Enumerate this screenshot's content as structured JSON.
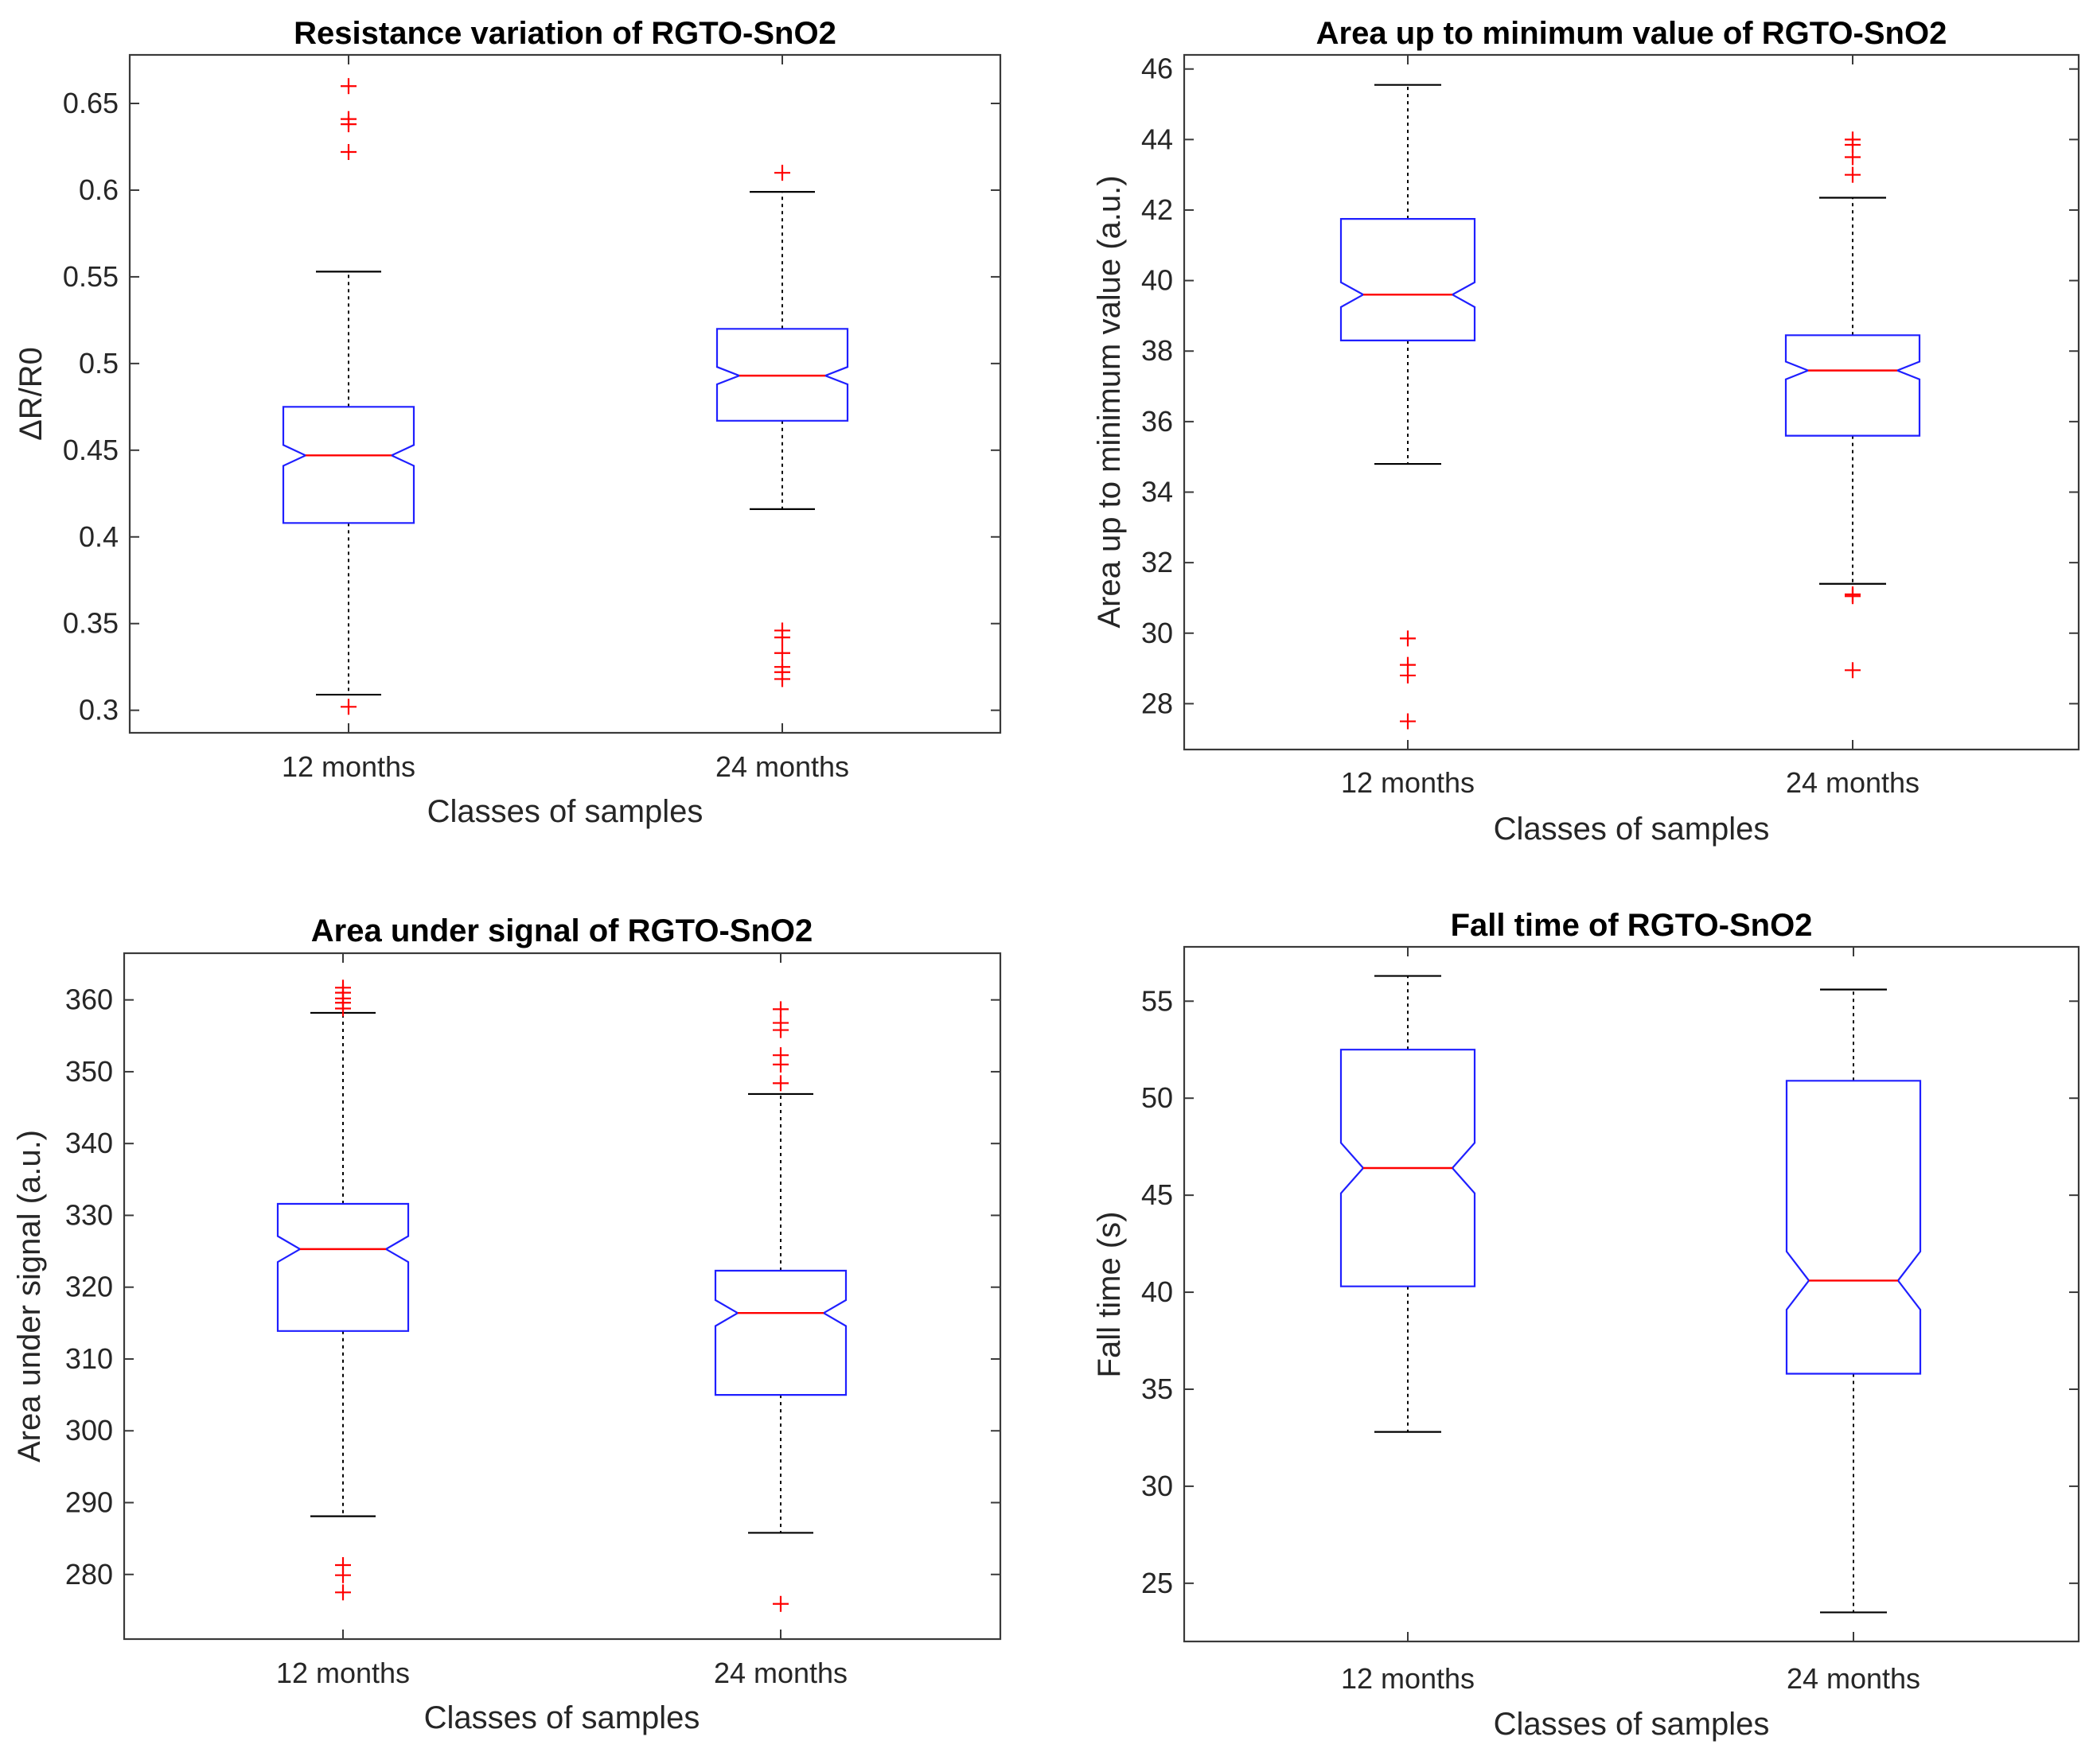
{
  "chart_data": [
    {
      "type": "boxplot",
      "title": "Resistance variation of RGTO-SnO2",
      "xlabel": "Classes of samples",
      "ylabel": "ΔR/R0",
      "categories": [
        "12 months",
        "24 months"
      ],
      "ylim": [
        0.287,
        0.678
      ],
      "yticks": [
        0.3,
        0.35,
        0.4,
        0.45,
        0.5,
        0.55,
        0.6,
        0.65
      ],
      "ytick_labels": [
        "0.3",
        "0.35",
        "0.4",
        "0.45",
        "0.5",
        "0.55",
        "0.6",
        "0.65"
      ],
      "boxes": [
        {
          "category": "12 months",
          "whisker_low": 0.309,
          "q1": 0.408,
          "median": 0.447,
          "q3": 0.475,
          "whisker_high": 0.553,
          "notch_low": 0.441,
          "notch_high": 0.453,
          "outliers": [
            0.302,
            0.622,
            0.638,
            0.641,
            0.66
          ]
        },
        {
          "category": "24 months",
          "whisker_low": 0.416,
          "q1": 0.467,
          "median": 0.493,
          "q3": 0.52,
          "whisker_high": 0.599,
          "notch_low": 0.488,
          "notch_high": 0.498,
          "outliers": [
            0.318,
            0.322,
            0.325,
            0.333,
            0.342,
            0.346,
            0.61
          ]
        }
      ]
    },
    {
      "type": "boxplot",
      "title": "Area up to minimum value of RGTO-SnO2",
      "xlabel": "Classes of samples",
      "ylabel": "Area up to minimum value (a.u.)",
      "categories": [
        "12 months",
        "24 months"
      ],
      "ylim": [
        26.7,
        46.4
      ],
      "yticks": [
        28,
        30,
        32,
        34,
        36,
        38,
        40,
        42,
        44,
        46
      ],
      "ytick_labels": [
        "28",
        "30",
        "32",
        "34",
        "36",
        "38",
        "40",
        "42",
        "44",
        "46"
      ],
      "boxes": [
        {
          "category": "12 months",
          "whisker_low": 34.8,
          "q1": 38.3,
          "median": 39.6,
          "q3": 41.75,
          "whisker_high": 45.55,
          "notch_low": 39.25,
          "notch_high": 39.95,
          "outliers": [
            27.5,
            28.8,
            29.1,
            29.85
          ]
        },
        {
          "category": "24 months",
          "whisker_low": 31.4,
          "q1": 35.6,
          "median": 37.45,
          "q3": 38.45,
          "whisker_high": 42.35,
          "notch_low": 37.2,
          "notch_high": 37.7,
          "outliers": [
            28.95,
            31.05,
            31.1,
            43.0,
            43.5,
            43.85,
            44.0
          ]
        }
      ]
    },
    {
      "type": "boxplot",
      "title": "Area under signal of RGTO-SnO2",
      "xlabel": "Classes of samples",
      "ylabel": "Area under signal (a.u.)",
      "categories": [
        "12 months",
        "24 months"
      ],
      "ylim": [
        271,
        366.5
      ],
      "yticks": [
        280,
        290,
        300,
        310,
        320,
        330,
        340,
        350,
        360
      ],
      "ytick_labels": [
        "280",
        "290",
        "300",
        "310",
        "320",
        "330",
        "340",
        "350",
        "360"
      ],
      "boxes": [
        {
          "category": "12 months",
          "whisker_low": 288.1,
          "q1": 313.9,
          "median": 325.3,
          "q3": 331.6,
          "whisker_high": 358.2,
          "notch_low": 323.5,
          "notch_high": 327.1,
          "outliers": [
            277.5,
            279.9,
            281.3,
            358.8,
            359.6,
            360.2,
            361.0,
            361.7
          ]
        },
        {
          "category": "24 months",
          "whisker_low": 285.8,
          "q1": 305.0,
          "median": 316.4,
          "q3": 322.3,
          "whisker_high": 346.9,
          "notch_low": 314.6,
          "notch_high": 318.2,
          "outliers": [
            275.9,
            348.4,
            351.0,
            352.3,
            355.8,
            356.8,
            358.7
          ]
        }
      ]
    },
    {
      "type": "boxplot",
      "title": "Fall time of RGTO-SnO2",
      "xlabel": "Classes of samples",
      "ylabel": "Fall time (s)",
      "categories": [
        "12 months",
        "24 months"
      ],
      "ylim": [
        22.0,
        57.8
      ],
      "yticks": [
        25,
        30,
        35,
        40,
        45,
        50,
        55
      ],
      "ytick_labels": [
        "25",
        "30",
        "35",
        "40",
        "45",
        "50",
        "55"
      ],
      "boxes": [
        {
          "category": "12 months",
          "whisker_low": 32.8,
          "q1": 40.3,
          "median": 46.4,
          "q3": 52.5,
          "whisker_high": 56.3,
          "notch_low": 45.1,
          "notch_high": 47.7,
          "outliers": []
        },
        {
          "category": "24 months",
          "whisker_low": 23.5,
          "q1": 35.8,
          "median": 40.6,
          "q3": 50.9,
          "whisker_high": 55.6,
          "notch_low": 39.1,
          "notch_high": 42.1,
          "outliers": []
        }
      ]
    }
  ]
}
